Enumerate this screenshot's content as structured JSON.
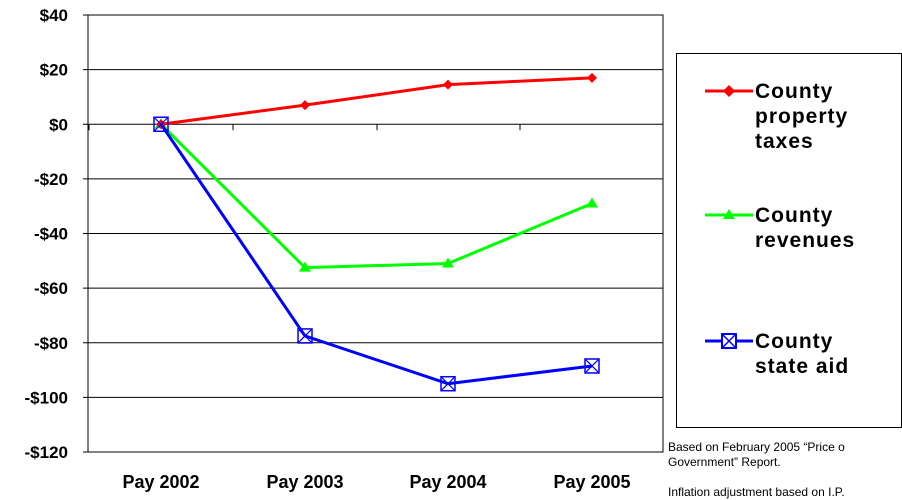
{
  "chart_data": {
    "type": "line",
    "categories": [
      "Pay 2002",
      "Pay 2003",
      "Pay 2004",
      "Pay 2005"
    ],
    "ylim": [
      -120,
      40
    ],
    "yticks": [
      40,
      20,
      0,
      -20,
      -40,
      -60,
      -80,
      -100,
      -120
    ],
    "ytick_labels": [
      "$40",
      "$20",
      "$0",
      "-$20",
      "-$40",
      "-$60",
      "-$80",
      "-$100",
      "-$120"
    ],
    "grid": true,
    "legend_position": "right",
    "series": [
      {
        "name": "County property taxes",
        "color": "#ff0000",
        "marker": "diamond",
        "legend_lines": [
          "County",
          "property",
          "taxes"
        ],
        "values": [
          0,
          7,
          14.5,
          17
        ]
      },
      {
        "name": "County revenues",
        "color": "#00ff00",
        "marker": "triangle",
        "legend_lines": [
          "County",
          "revenues"
        ],
        "values": [
          0,
          -52.5,
          -51,
          -29
        ]
      },
      {
        "name": "County state aid",
        "color": "#0000ff",
        "marker": "square-x",
        "legend_lines": [
          "County",
          "state aid"
        ],
        "values": [
          0,
          -77.5,
          -95,
          -88.5
        ]
      }
    ]
  },
  "notes": {
    "source_line1": "Based on February 2005 “Price o",
    "source_line2": "Government” Report.",
    "inflation": "Inflation adjustment based on I.P."
  }
}
